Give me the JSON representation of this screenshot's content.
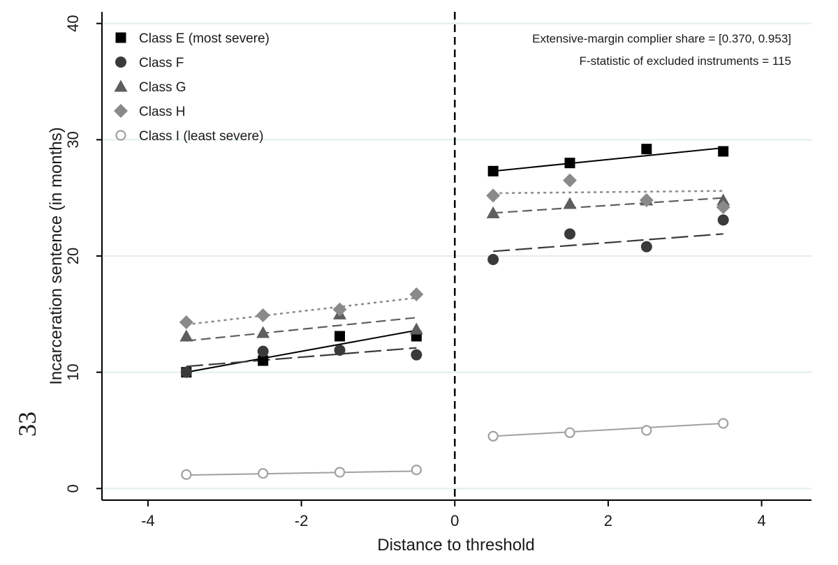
{
  "chart_data": {
    "type": "scatter",
    "title": "",
    "xlabel": "Distance to threshold",
    "ylabel": "Incarceration sentence (in months)",
    "xlim": [
      -4.6,
      4.65
    ],
    "ylim": [
      -1,
      41
    ],
    "xticks": [
      -4,
      -2,
      0,
      2,
      4
    ],
    "yticks": [
      0,
      10,
      20,
      30,
      40
    ],
    "grid": "horizontal",
    "threshold_x": 0,
    "legend_position": "top-left",
    "series": [
      {
        "name": "Class E (most severe)",
        "marker": "square",
        "color": "#000000",
        "line_style": "solid",
        "points": [
          {
            "x": -3.5,
            "y": 10.0
          },
          {
            "x": -2.5,
            "y": 11.0
          },
          {
            "x": -1.5,
            "y": 13.1
          },
          {
            "x": -0.5,
            "y": 13.1
          },
          {
            "x": 0.5,
            "y": 27.3
          },
          {
            "x": 1.5,
            "y": 28.0
          },
          {
            "x": 2.5,
            "y": 29.2
          },
          {
            "x": 3.5,
            "y": 29.0
          }
        ],
        "fit_left": [
          [
            -3.5,
            10.0
          ],
          [
            -0.5,
            13.6
          ]
        ],
        "fit_right": [
          [
            0.5,
            27.3
          ],
          [
            3.5,
            29.3
          ]
        ]
      },
      {
        "name": "Class F",
        "marker": "circle",
        "color": "#3a3a3a",
        "line_style": "longdash",
        "points": [
          {
            "x": -3.5,
            "y": 10.0
          },
          {
            "x": -2.5,
            "y": 11.8
          },
          {
            "x": -1.5,
            "y": 11.9
          },
          {
            "x": -0.5,
            "y": 11.5
          },
          {
            "x": 0.5,
            "y": 19.7
          },
          {
            "x": 1.5,
            "y": 21.9
          },
          {
            "x": 2.5,
            "y": 20.8
          },
          {
            "x": 3.5,
            "y": 23.1
          }
        ],
        "fit_left": [
          [
            -3.5,
            10.5
          ],
          [
            -0.5,
            12.1
          ]
        ],
        "fit_right": [
          [
            0.5,
            20.4
          ],
          [
            3.5,
            21.9
          ]
        ]
      },
      {
        "name": "Class G",
        "marker": "triangle",
        "color": "#5e5e5e",
        "line_style": "dash",
        "points": [
          {
            "x": -3.5,
            "y": 13.1
          },
          {
            "x": -2.5,
            "y": 13.4
          },
          {
            "x": -1.5,
            "y": 15.0
          },
          {
            "x": -0.5,
            "y": 13.7
          },
          {
            "x": 0.5,
            "y": 23.7
          },
          {
            "x": 1.5,
            "y": 24.5
          },
          {
            "x": 2.5,
            "y": 24.8
          },
          {
            "x": 3.5,
            "y": 24.8
          }
        ],
        "fit_left": [
          [
            -3.5,
            12.7
          ],
          [
            -0.5,
            14.7
          ]
        ],
        "fit_right": [
          [
            0.5,
            23.7
          ],
          [
            3.5,
            25.0
          ]
        ]
      },
      {
        "name": "Class H",
        "marker": "diamond",
        "color": "#8a8a8a",
        "line_style": "dot",
        "points": [
          {
            "x": -3.5,
            "y": 14.3
          },
          {
            "x": -2.5,
            "y": 14.9
          },
          {
            "x": -1.5,
            "y": 15.4
          },
          {
            "x": -0.5,
            "y": 16.7
          },
          {
            "x": 0.5,
            "y": 25.2
          },
          {
            "x": 1.5,
            "y": 26.5
          },
          {
            "x": 2.5,
            "y": 24.8
          },
          {
            "x": 3.5,
            "y": 24.2
          }
        ],
        "fit_left": [
          [
            -3.5,
            14.1
          ],
          [
            -0.5,
            16.4
          ]
        ],
        "fit_right": [
          [
            0.5,
            25.4
          ],
          [
            3.5,
            25.6
          ]
        ]
      },
      {
        "name": "Class I (least severe)",
        "marker": "hollow-circle",
        "color": "#a0a0a0",
        "line_style": "solid",
        "points": [
          {
            "x": -3.5,
            "y": 1.2
          },
          {
            "x": -2.5,
            "y": 1.3
          },
          {
            "x": -1.5,
            "y": 1.4
          },
          {
            "x": -0.5,
            "y": 1.6
          },
          {
            "x": 0.5,
            "y": 4.5
          },
          {
            "x": 1.5,
            "y": 4.8
          },
          {
            "x": 2.5,
            "y": 5.0
          },
          {
            "x": 3.5,
            "y": 5.6
          }
        ],
        "fit_left": [
          [
            -3.5,
            1.15
          ],
          [
            -0.5,
            1.5
          ]
        ],
        "fit_right": [
          [
            0.5,
            4.5
          ],
          [
            3.5,
            5.6
          ]
        ]
      }
    ],
    "annotations": [
      "Extensive-margin complier share = [0.370, 0.953]",
      "F-statistic of excluded instruments = 115"
    ]
  },
  "page_number": "33"
}
